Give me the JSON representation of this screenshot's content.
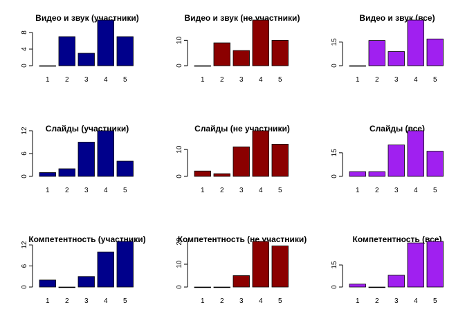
{
  "chart_data": [
    {
      "type": "bar",
      "title": "Видео и звук  (участники)",
      "categories": [
        "1",
        "2",
        "3",
        "4",
        "5"
      ],
      "values": [
        0,
        7,
        3,
        11,
        7
      ],
      "ylim": [
        0,
        11
      ],
      "yticks": [
        0,
        4,
        8
      ],
      "color": "#00008B"
    },
    {
      "type": "bar",
      "title": "Видео и звук  (не участники)",
      "categories": [
        "1",
        "2",
        "3",
        "4",
        "5"
      ],
      "values": [
        0,
        9,
        6,
        18,
        10
      ],
      "ylim": [
        0,
        18
      ],
      "yticks": [
        0,
        10
      ],
      "color": "#8B0000"
    },
    {
      "type": "bar",
      "title": "Видео и звук  (все)",
      "categories": [
        "1",
        "2",
        "3",
        "4",
        "5"
      ],
      "values": [
        0,
        16,
        9,
        29,
        17
      ],
      "ylim": [
        0,
        29
      ],
      "yticks": [
        0,
        15
      ],
      "color": "#A020F0"
    },
    {
      "type": "bar",
      "title": "Слайды  (участники)",
      "categories": [
        "1",
        "2",
        "3",
        "4",
        "5"
      ],
      "values": [
        1,
        2,
        9,
        12,
        4
      ],
      "ylim": [
        0,
        12
      ],
      "yticks": [
        0,
        6,
        12
      ],
      "color": "#00008B"
    },
    {
      "type": "bar",
      "title": "Слайды  (не участники)",
      "categories": [
        "1",
        "2",
        "3",
        "4",
        "5"
      ],
      "values": [
        2,
        1,
        11,
        17,
        12
      ],
      "ylim": [
        0,
        17
      ],
      "yticks": [
        0,
        10
      ],
      "color": "#8B0000"
    },
    {
      "type": "bar",
      "title": "Слайды  (все)",
      "categories": [
        "1",
        "2",
        "3",
        "4",
        "5"
      ],
      "values": [
        3,
        3,
        20,
        29,
        16
      ],
      "ylim": [
        0,
        29
      ],
      "yticks": [
        0,
        15
      ],
      "color": "#A020F0"
    },
    {
      "type": "bar",
      "title": "Компетентность  (участники)",
      "categories": [
        "1",
        "2",
        "3",
        "4",
        "5"
      ],
      "values": [
        2,
        0,
        3,
        10,
        13
      ],
      "ylim": [
        0,
        13
      ],
      "yticks": [
        0,
        6,
        12
      ],
      "color": "#00008B"
    },
    {
      "type": "bar",
      "title": "Компетентность  (не участники)",
      "categories": [
        "1",
        "2",
        "3",
        "4",
        "5"
      ],
      "values": [
        0,
        0,
        5,
        20,
        18
      ],
      "ylim": [
        0,
        20
      ],
      "yticks": [
        0,
        10,
        20
      ],
      "color": "#8B0000"
    },
    {
      "type": "bar",
      "title": "Компетентность  (все)",
      "categories": [
        "1",
        "2",
        "3",
        "4",
        "5"
      ],
      "values": [
        2,
        0,
        8,
        30,
        31
      ],
      "ylim": [
        0,
        31
      ],
      "yticks": [
        0,
        15
      ],
      "color": "#A020F0"
    }
  ]
}
